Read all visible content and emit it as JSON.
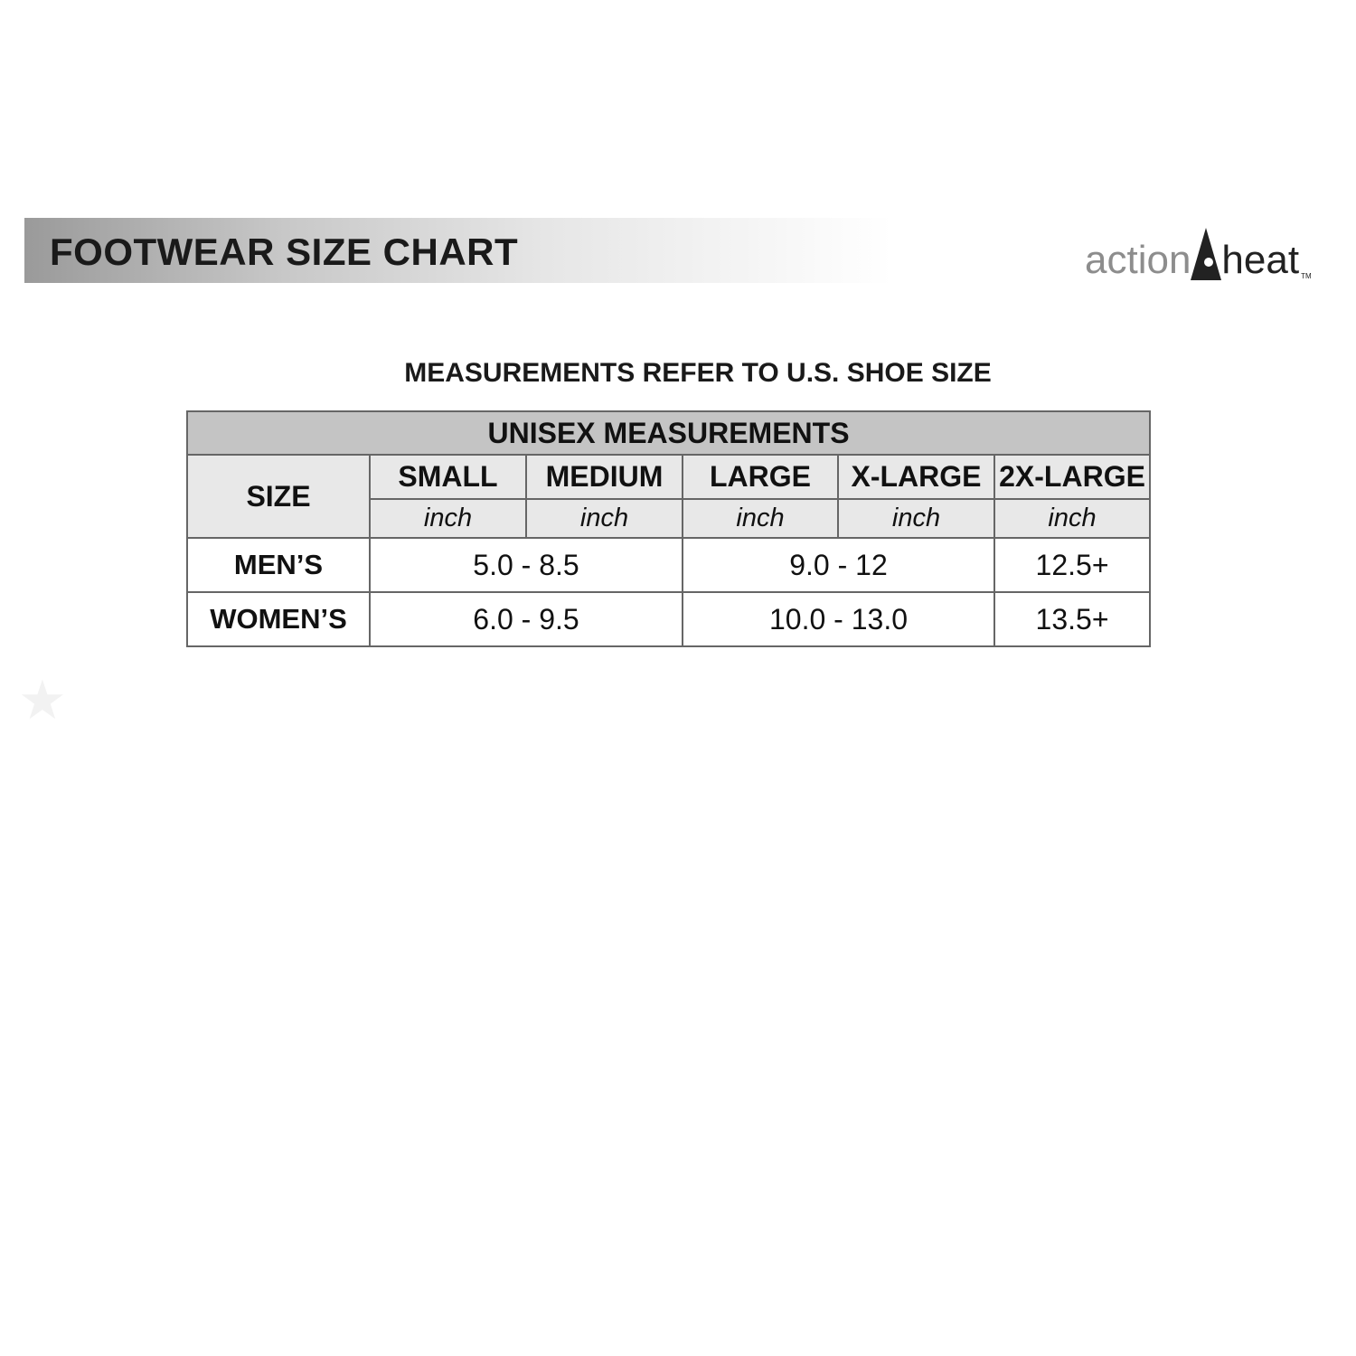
{
  "banner": {
    "title": "FOOTWEAR SIZE CHART"
  },
  "logo": {
    "part1": "action",
    "part2": "heat",
    "tm": "TM"
  },
  "subtitle": "MEASUREMENTS REFER TO U.S. SHOE SIZE",
  "table": {
    "title": "UNISEX MEASUREMENTS",
    "size_label": "SIZE",
    "columns": [
      "SMALL",
      "MEDIUM",
      "LARGE",
      "X-LARGE",
      "2X-LARGE"
    ],
    "unit": "inch",
    "rows": [
      {
        "label": "MEN’S",
        "small_medium": "5.0 - 8.5",
        "large_xlarge": "9.0 - 12",
        "xxlarge": "12.5+"
      },
      {
        "label": "WOMEN’S",
        "small_medium": "6.0 - 9.5",
        "large_xlarge": "10.0 - 13.0",
        "xxlarge": "13.5+"
      }
    ]
  },
  "icons": {
    "star": "star-icon"
  }
}
